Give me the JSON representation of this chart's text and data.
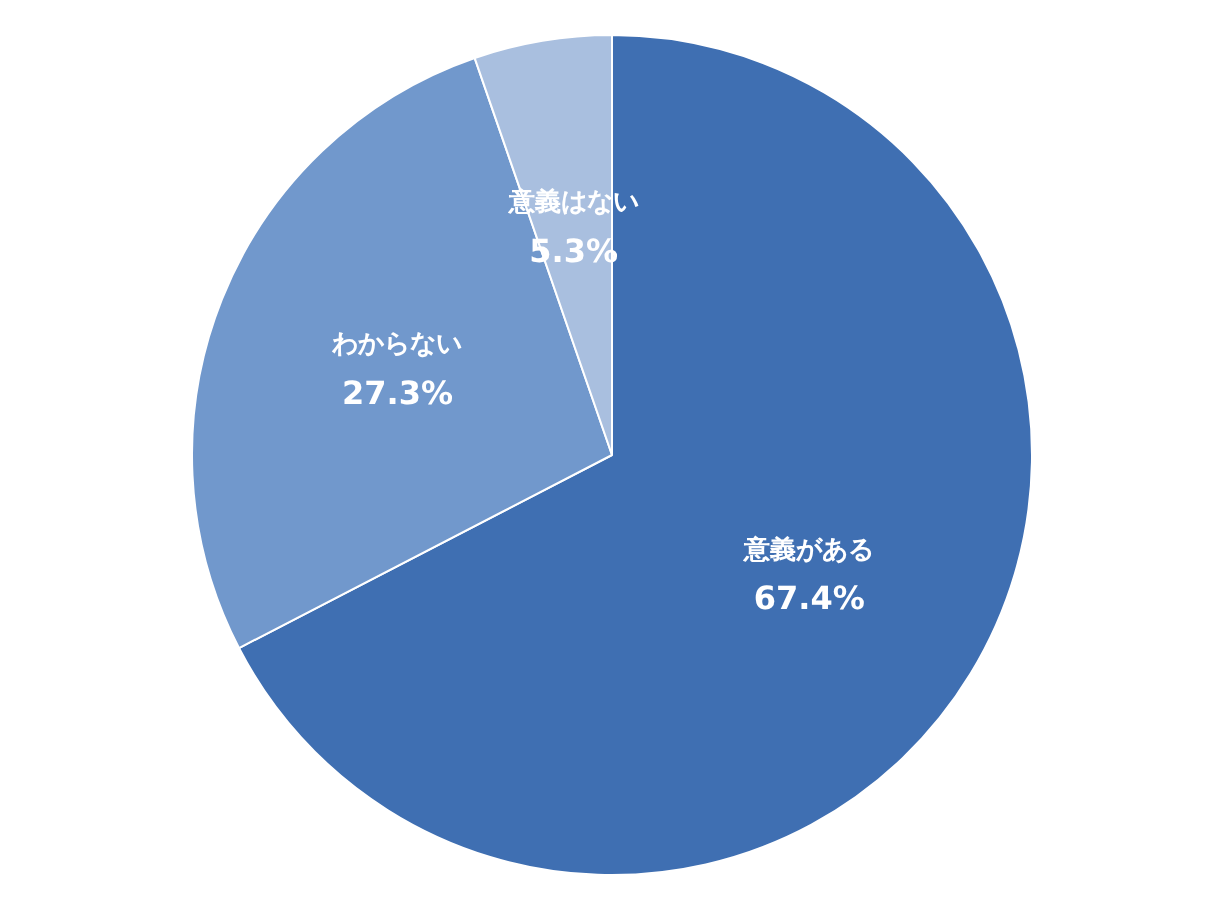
{
  "chart_data": {
    "type": "pie",
    "categories": [
      "意義がある",
      "わからない",
      "意義はない"
    ],
    "values": [
      67.4,
      27.3,
      5.3
    ],
    "colors": [
      "#3f6fb2",
      "#7198cc",
      "#a9bfdf"
    ],
    "value_labels": [
      "67.4%",
      "27.3%",
      "5.3%"
    ],
    "legend": false
  }
}
